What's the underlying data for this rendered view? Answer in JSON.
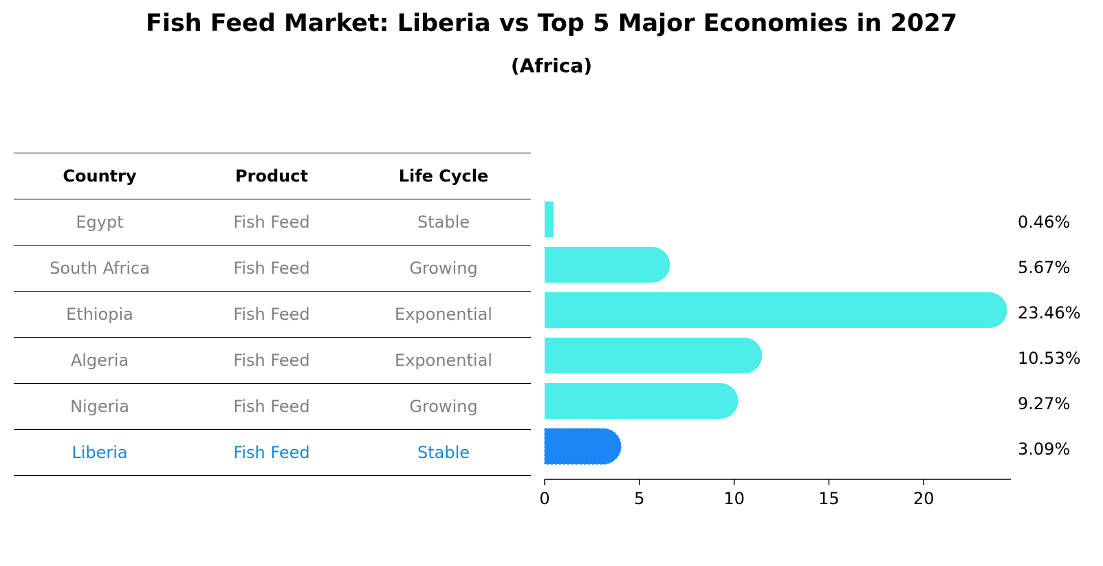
{
  "title": "Fish Feed Market: Liberia vs Top 5 Major Economies in 2027",
  "subtitle": "(Africa)",
  "table": {
    "headers": [
      "Country",
      "Product",
      "Life Cycle"
    ],
    "rows": [
      {
        "country": "Egypt",
        "product": "Fish Feed",
        "life_cycle": "Stable",
        "highlight": false
      },
      {
        "country": "South Africa",
        "product": "Fish Feed",
        "life_cycle": "Growing",
        "highlight": false
      },
      {
        "country": "Ethiopia",
        "product": "Fish Feed",
        "life_cycle": "Exponential",
        "highlight": false
      },
      {
        "country": "Algeria",
        "product": "Fish Feed",
        "life_cycle": "Exponential",
        "highlight": false
      },
      {
        "country": "Nigeria",
        "product": "Fish Feed",
        "life_cycle": "Growing",
        "highlight": false
      },
      {
        "country": "Liberia",
        "product": "Fish Feed",
        "life_cycle": "Stable",
        "highlight": true
      }
    ]
  },
  "colors": {
    "bar": "#4dede9",
    "highlight_bar": "#1a87f5",
    "highlight_text": "#1a87d6",
    "row_text": "#808080"
  },
  "chart_data": {
    "type": "bar",
    "orientation": "horizontal",
    "categories": [
      "Egypt",
      "South Africa",
      "Ethiopia",
      "Algeria",
      "Nigeria",
      "Liberia"
    ],
    "values": [
      0.46,
      5.67,
      23.46,
      10.53,
      9.27,
      3.09
    ],
    "value_labels": [
      "0.46%",
      "5.67%",
      "23.46%",
      "10.53%",
      "9.27%",
      "3.09%"
    ],
    "highlight_category": "Liberia",
    "xlim": [
      0,
      24.6
    ],
    "xticks": [
      0,
      5,
      10,
      15,
      20
    ],
    "xlabel": "",
    "ylabel": "",
    "grid": false
  }
}
